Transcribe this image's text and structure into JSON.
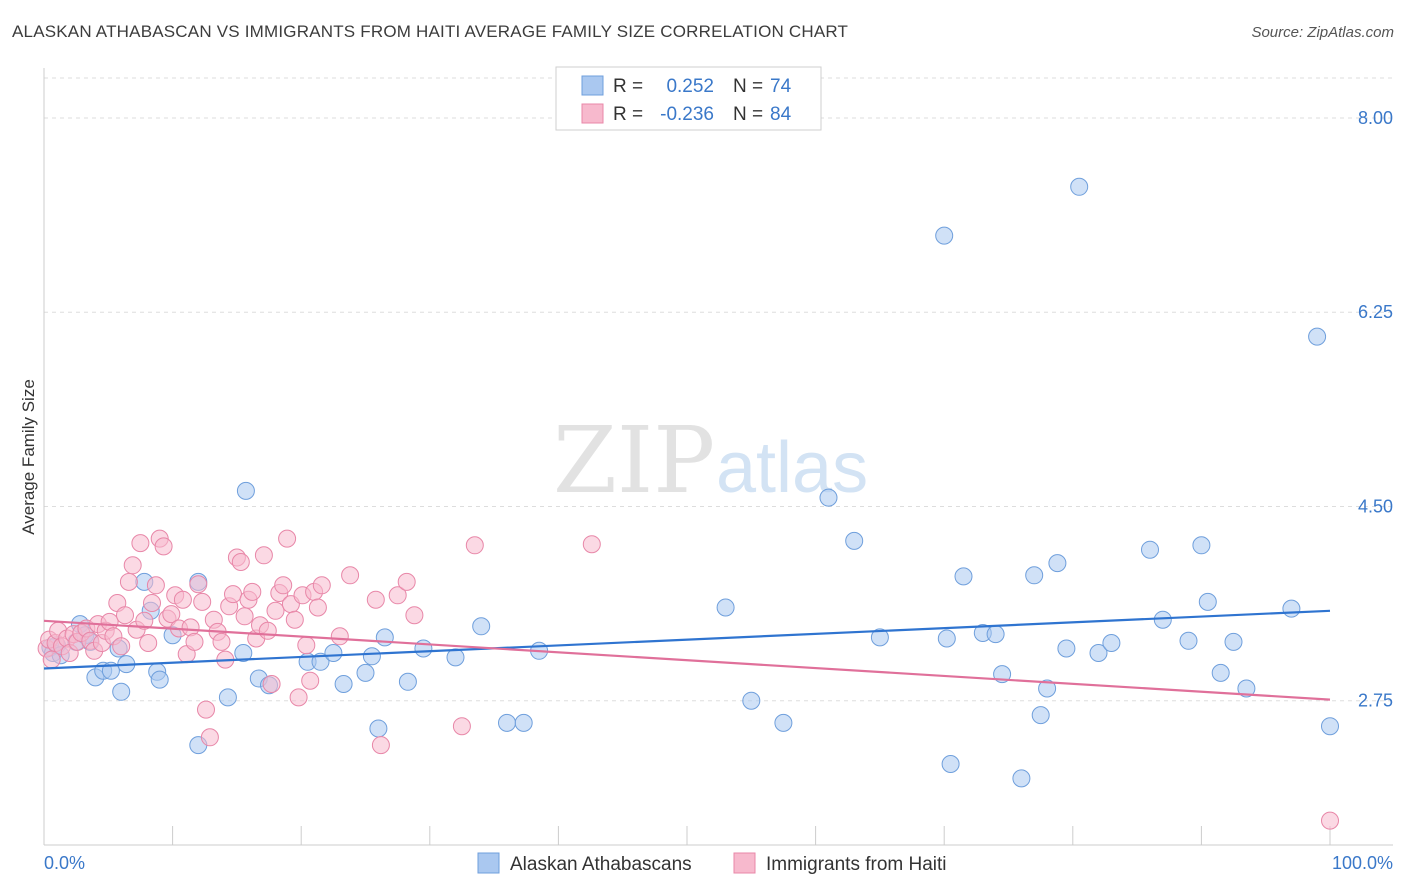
{
  "title": "ALASKAN ATHABASCAN VS IMMIGRANTS FROM HAITI AVERAGE FAMILY SIZE CORRELATION CHART",
  "source": "Source: ZipAtlas.com",
  "watermark": {
    "zip": "ZIP",
    "atlas": "atlas"
  },
  "colors": {
    "blue_fill": "#aac8f0",
    "blue_stroke": "#6f9fdc",
    "blue_line": "#2f74d0",
    "pink_fill": "#f7b9cd",
    "pink_stroke": "#e887a8",
    "pink_line": "#e0709a",
    "value_text": "#3a78c9",
    "grid": "#dddddd"
  },
  "legend": {
    "r_label": "R =",
    "n_label": "N =",
    "entries": [
      {
        "r": "0.252",
        "n": "74"
      },
      {
        "r": "-0.236",
        "n": "84"
      }
    ]
  },
  "chart_data": {
    "type": "scatter",
    "title": "ALASKAN ATHABASCAN VS IMMIGRANTS FROM HAITI AVERAGE FAMILY SIZE CORRELATION CHART",
    "xlabel": "",
    "ylabel": "Average Family Size",
    "xlim": [
      0,
      100
    ],
    "ylim": [
      1.45,
      8.45
    ],
    "x_tick_labels": [
      "0.0%",
      "100.0%"
    ],
    "y_ticks": [
      2.75,
      4.5,
      6.25,
      8.0
    ],
    "y_tick_labels": [
      "2.75",
      "4.50",
      "6.25",
      "8.00"
    ],
    "grid": true,
    "legend_position": "top-center",
    "series": [
      {
        "name": "Alaskan Athabascans",
        "color": "#aac8f0",
        "trend": {
          "x": [
            0,
            100
          ],
          "y": [
            3.04,
            3.56
          ]
        },
        "points": [
          [
            0.5,
            3.23
          ],
          [
            0.7,
            3.18
          ],
          [
            1.0,
            3.25
          ],
          [
            1.3,
            3.16
          ],
          [
            2.5,
            3.28
          ],
          [
            2.8,
            3.44
          ],
          [
            3.2,
            3.34
          ],
          [
            3.6,
            3.28
          ],
          [
            4.0,
            2.96
          ],
          [
            4.6,
            3.02
          ],
          [
            5.2,
            3.02
          ],
          [
            5.8,
            3.22
          ],
          [
            6.0,
            2.83
          ],
          [
            6.4,
            3.08
          ],
          [
            7.8,
            3.82
          ],
          [
            8.3,
            3.56
          ],
          [
            8.8,
            3.01
          ],
          [
            9.0,
            2.94
          ],
          [
            10.0,
            3.34
          ],
          [
            12.0,
            2.35
          ],
          [
            12.0,
            3.82
          ],
          [
            14.3,
            2.78
          ],
          [
            15.5,
            3.18
          ],
          [
            15.7,
            4.64
          ],
          [
            16.7,
            2.95
          ],
          [
            17.5,
            2.89
          ],
          [
            20.5,
            3.1
          ],
          [
            21.5,
            3.1
          ],
          [
            22.5,
            3.18
          ],
          [
            23.3,
            2.9
          ],
          [
            25.0,
            3.0
          ],
          [
            25.5,
            3.15
          ],
          [
            26.0,
            2.5
          ],
          [
            26.5,
            3.32
          ],
          [
            28.3,
            2.92
          ],
          [
            29.5,
            3.22
          ],
          [
            32.0,
            3.14
          ],
          [
            34.0,
            3.42
          ],
          [
            36.0,
            2.55
          ],
          [
            37.3,
            2.55
          ],
          [
            38.5,
            3.2
          ],
          [
            53.0,
            3.59
          ],
          [
            55.0,
            2.75
          ],
          [
            57.5,
            2.55
          ],
          [
            61.0,
            4.58
          ],
          [
            63.0,
            4.19
          ],
          [
            65.0,
            3.32
          ],
          [
            70.0,
            6.94
          ],
          [
            70.5,
            2.18
          ],
          [
            70.2,
            3.31
          ],
          [
            71.5,
            3.87
          ],
          [
            73.0,
            3.36
          ],
          [
            74.0,
            3.35
          ],
          [
            74.5,
            2.99
          ],
          [
            76.0,
            2.05
          ],
          [
            77.0,
            3.88
          ],
          [
            77.5,
            2.62
          ],
          [
            78.0,
            2.86
          ],
          [
            78.8,
            3.99
          ],
          [
            79.5,
            3.22
          ],
          [
            80.5,
            7.38
          ],
          [
            82.0,
            3.18
          ],
          [
            83.0,
            3.27
          ],
          [
            86.0,
            4.11
          ],
          [
            87.0,
            3.48
          ],
          [
            89.0,
            3.29
          ],
          [
            90.0,
            4.15
          ],
          [
            90.5,
            3.64
          ],
          [
            91.5,
            3.0
          ],
          [
            92.5,
            3.28
          ],
          [
            93.5,
            2.86
          ],
          [
            99.0,
            6.03
          ],
          [
            100.0,
            2.52
          ],
          [
            97.0,
            3.58
          ]
        ]
      },
      {
        "name": "Immigrants from Haiti",
        "color": "#f7b9cd",
        "trend": {
          "x": [
            0,
            100
          ],
          "y": [
            3.47,
            2.76
          ]
        },
        "points": [
          [
            0.2,
            3.22
          ],
          [
            0.4,
            3.3
          ],
          [
            0.6,
            3.12
          ],
          [
            0.9,
            3.27
          ],
          [
            1.1,
            3.38
          ],
          [
            1.4,
            3.24
          ],
          [
            1.8,
            3.31
          ],
          [
            2.0,
            3.18
          ],
          [
            2.3,
            3.35
          ],
          [
            2.6,
            3.28
          ],
          [
            2.9,
            3.36
          ],
          [
            3.3,
            3.4
          ],
          [
            3.6,
            3.29
          ],
          [
            3.9,
            3.2
          ],
          [
            4.2,
            3.44
          ],
          [
            4.5,
            3.27
          ],
          [
            4.8,
            3.38
          ],
          [
            5.1,
            3.46
          ],
          [
            5.4,
            3.33
          ],
          [
            5.7,
            3.63
          ],
          [
            6.0,
            3.24
          ],
          [
            6.3,
            3.52
          ],
          [
            6.6,
            3.82
          ],
          [
            6.9,
            3.97
          ],
          [
            7.2,
            3.39
          ],
          [
            7.5,
            4.17
          ],
          [
            7.8,
            3.47
          ],
          [
            8.1,
            3.27
          ],
          [
            8.4,
            3.63
          ],
          [
            8.7,
            3.79
          ],
          [
            9.0,
            4.21
          ],
          [
            9.3,
            4.14
          ],
          [
            9.6,
            3.49
          ],
          [
            9.9,
            3.53
          ],
          [
            10.2,
            3.7
          ],
          [
            10.5,
            3.4
          ],
          [
            10.8,
            3.66
          ],
          [
            11.1,
            3.17
          ],
          [
            11.4,
            3.41
          ],
          [
            11.7,
            3.28
          ],
          [
            12.0,
            3.8
          ],
          [
            12.3,
            3.64
          ],
          [
            12.6,
            2.67
          ],
          [
            12.9,
            2.42
          ],
          [
            13.2,
            3.48
          ],
          [
            13.5,
            3.37
          ],
          [
            13.8,
            3.28
          ],
          [
            14.1,
            3.12
          ],
          [
            14.4,
            3.6
          ],
          [
            14.7,
            3.71
          ],
          [
            15.0,
            4.04
          ],
          [
            15.3,
            4.0
          ],
          [
            15.6,
            3.51
          ],
          [
            15.9,
            3.66
          ],
          [
            16.2,
            3.73
          ],
          [
            16.5,
            3.31
          ],
          [
            16.8,
            3.43
          ],
          [
            17.1,
            4.06
          ],
          [
            17.4,
            3.38
          ],
          [
            17.7,
            2.9
          ],
          [
            18.0,
            3.56
          ],
          [
            18.3,
            3.72
          ],
          [
            18.6,
            3.79
          ],
          [
            18.9,
            4.21
          ],
          [
            19.2,
            3.62
          ],
          [
            19.5,
            3.48
          ],
          [
            19.8,
            2.78
          ],
          [
            20.1,
            3.7
          ],
          [
            20.4,
            3.25
          ],
          [
            20.7,
            2.93
          ],
          [
            21.0,
            3.73
          ],
          [
            21.3,
            3.59
          ],
          [
            21.6,
            3.79
          ],
          [
            23.0,
            3.33
          ],
          [
            23.8,
            3.88
          ],
          [
            25.8,
            3.66
          ],
          [
            26.2,
            2.35
          ],
          [
            27.5,
            3.7
          ],
          [
            28.2,
            3.82
          ],
          [
            28.8,
            3.52
          ],
          [
            32.5,
            2.52
          ],
          [
            33.5,
            4.15
          ],
          [
            42.6,
            4.16
          ],
          [
            100.0,
            1.67
          ]
        ]
      }
    ]
  },
  "bottom_legend": [
    {
      "label": "Alaskan Athabascans"
    },
    {
      "label": "Immigrants from Haiti"
    }
  ]
}
